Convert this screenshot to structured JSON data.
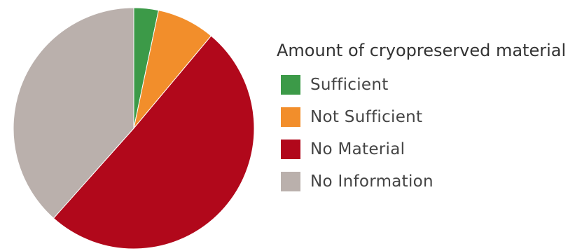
{
  "chart_data": {
    "type": "pie",
    "legend_title": "Amount of cryopreserved material",
    "legend_position": "right",
    "start_angle": "12 o'clock",
    "direction": "clockwise",
    "slices": [
      {
        "label": "Sufficient",
        "value": 3.3,
        "color": "#3c9a48"
      },
      {
        "label": "Not Sufficient",
        "value": 7.8,
        "color": "#f28e2b"
      },
      {
        "label": "No Material",
        "value": 50.5,
        "color": "#b1081b"
      },
      {
        "label": "No Information",
        "value": 38.4,
        "color": "#bab0ac"
      }
    ]
  },
  "legend": {
    "title": "Amount of cryopreserved material",
    "items": [
      {
        "label": "Sufficient",
        "color": "#3c9a48"
      },
      {
        "label": "Not Sufficient",
        "color": "#f28e2b"
      },
      {
        "label": "No Material",
        "color": "#b1081b"
      },
      {
        "label": "No Information",
        "color": "#bab0ac"
      }
    ]
  }
}
